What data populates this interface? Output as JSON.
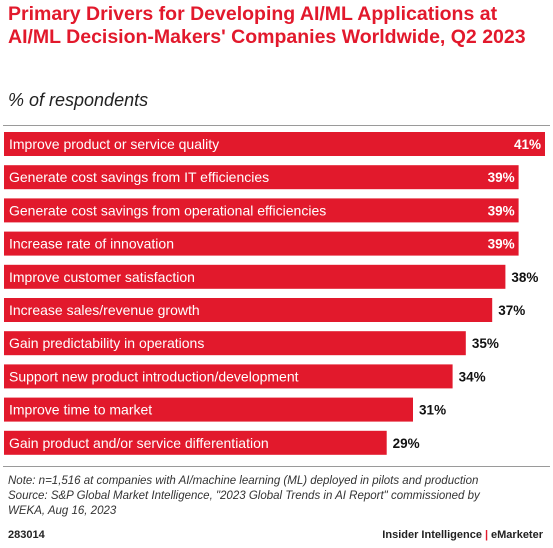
{
  "header": {
    "title": "Primary Drivers for Developing AI/ML Applications at AI/ML Decision-Makers' Companies Worldwide, Q2 2023",
    "subtitle": "% of respondents"
  },
  "colors": {
    "accent": "#e2192c"
  },
  "chart_data": {
    "type": "bar",
    "orientation": "horizontal",
    "categories": [
      "Improve product or service quality",
      "Generate cost savings from IT efficiencies",
      "Generate cost savings from operational efficiencies",
      "Increase rate of innovation",
      "Improve customer satisfaction",
      "Increase sales/revenue growth",
      "Gain predictability in operations",
      "Support new product introduction/development",
      "Improve time to market",
      "Gain product and/or service differentiation"
    ],
    "values": [
      41,
      39,
      39,
      39,
      38,
      37,
      35,
      34,
      31,
      29
    ],
    "value_labels": [
      "41%",
      "39%",
      "39%",
      "39%",
      "38%",
      "37%",
      "35%",
      "34%",
      "31%",
      "29%"
    ],
    "unit": "%",
    "xlim": [
      0,
      41
    ],
    "grid": false,
    "legend": "none"
  },
  "note": {
    "line1": "Note: n=1,516 at companies with AI/machine learning (ML) deployed in pilots and production",
    "line2": "Source: S&P Global Market Intelligence, \"2023 Global Trends in AI Report\" commissioned by",
    "line3": "WEKA, Aug 16, 2023"
  },
  "footer": {
    "id": "283014",
    "brand_left": "Insider Intelligence",
    "brand_sep": "|",
    "brand_right": "eMarketer"
  }
}
